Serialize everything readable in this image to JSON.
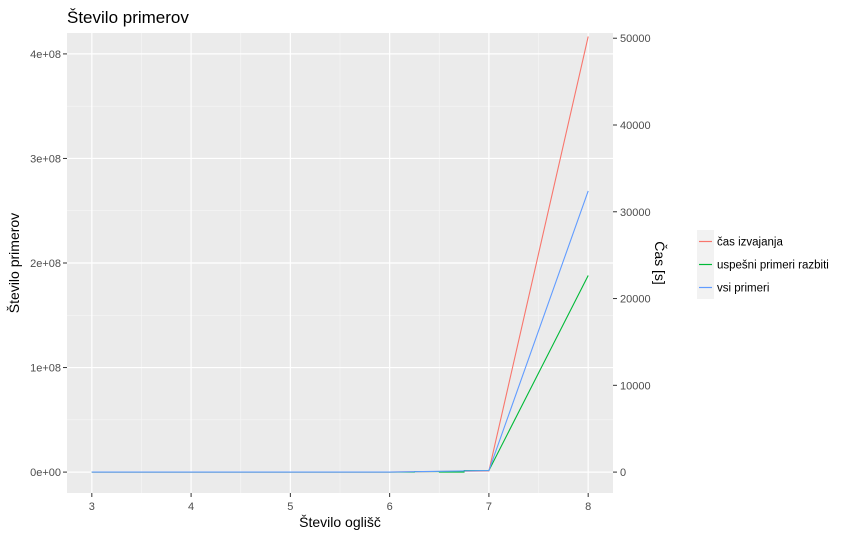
{
  "chart_data": {
    "type": "line",
    "title": "Število primerov",
    "xlabel": "Število oglišč",
    "ylabel": "Število primerov",
    "y2label": "Čas [s]",
    "xlim": [
      2.75,
      8.25
    ],
    "ylim": [
      -20000000,
      420000000
    ],
    "y2lim": [
      -2409,
      50602
    ],
    "x_ticks": [
      3,
      4,
      5,
      6,
      7,
      8
    ],
    "x_tick_labels": [
      "3",
      "4",
      "5",
      "6",
      "7",
      "8"
    ],
    "y_ticks": [
      0,
      100000000,
      200000000,
      300000000,
      400000000
    ],
    "y_tick_labels": [
      "0e+00",
      "1e+08",
      "2e+08",
      "3e+08",
      "4e+08"
    ],
    "y2_ticks": [
      0,
      10000,
      20000,
      30000,
      40000,
      50000
    ],
    "y2_tick_labels": [
      "0",
      "10000",
      "20000",
      "30000",
      "40000",
      "50000"
    ],
    "grid": true,
    "legend_position": "right",
    "series": [
      {
        "name": "čas izvajanja",
        "color": "#F8766D",
        "axis": "right",
        "x": [
          3,
          4,
          5,
          6,
          7,
          8
        ],
        "values": [
          0,
          0,
          0,
          5,
          140,
          50200
        ]
      },
      {
        "name": "uspešni primeri razbiti",
        "color": "#00BA38",
        "axis": "left",
        "x": [
          3,
          4,
          5,
          6,
          6.25,
          6.25,
          6.5,
          6.5,
          6.75,
          6.75,
          7,
          7,
          8
        ],
        "values": [
          0,
          0,
          0,
          0,
          0,
          500000,
          500000,
          0,
          0,
          1500000,
          1500000,
          1500000,
          188000000
        ]
      },
      {
        "name": "vsi primeri",
        "color": "#619CFF",
        "axis": "left",
        "x": [
          3,
          4,
          5,
          6,
          7,
          8
        ],
        "values": [
          0,
          0,
          0,
          0,
          1400000,
          269000000
        ]
      }
    ]
  }
}
